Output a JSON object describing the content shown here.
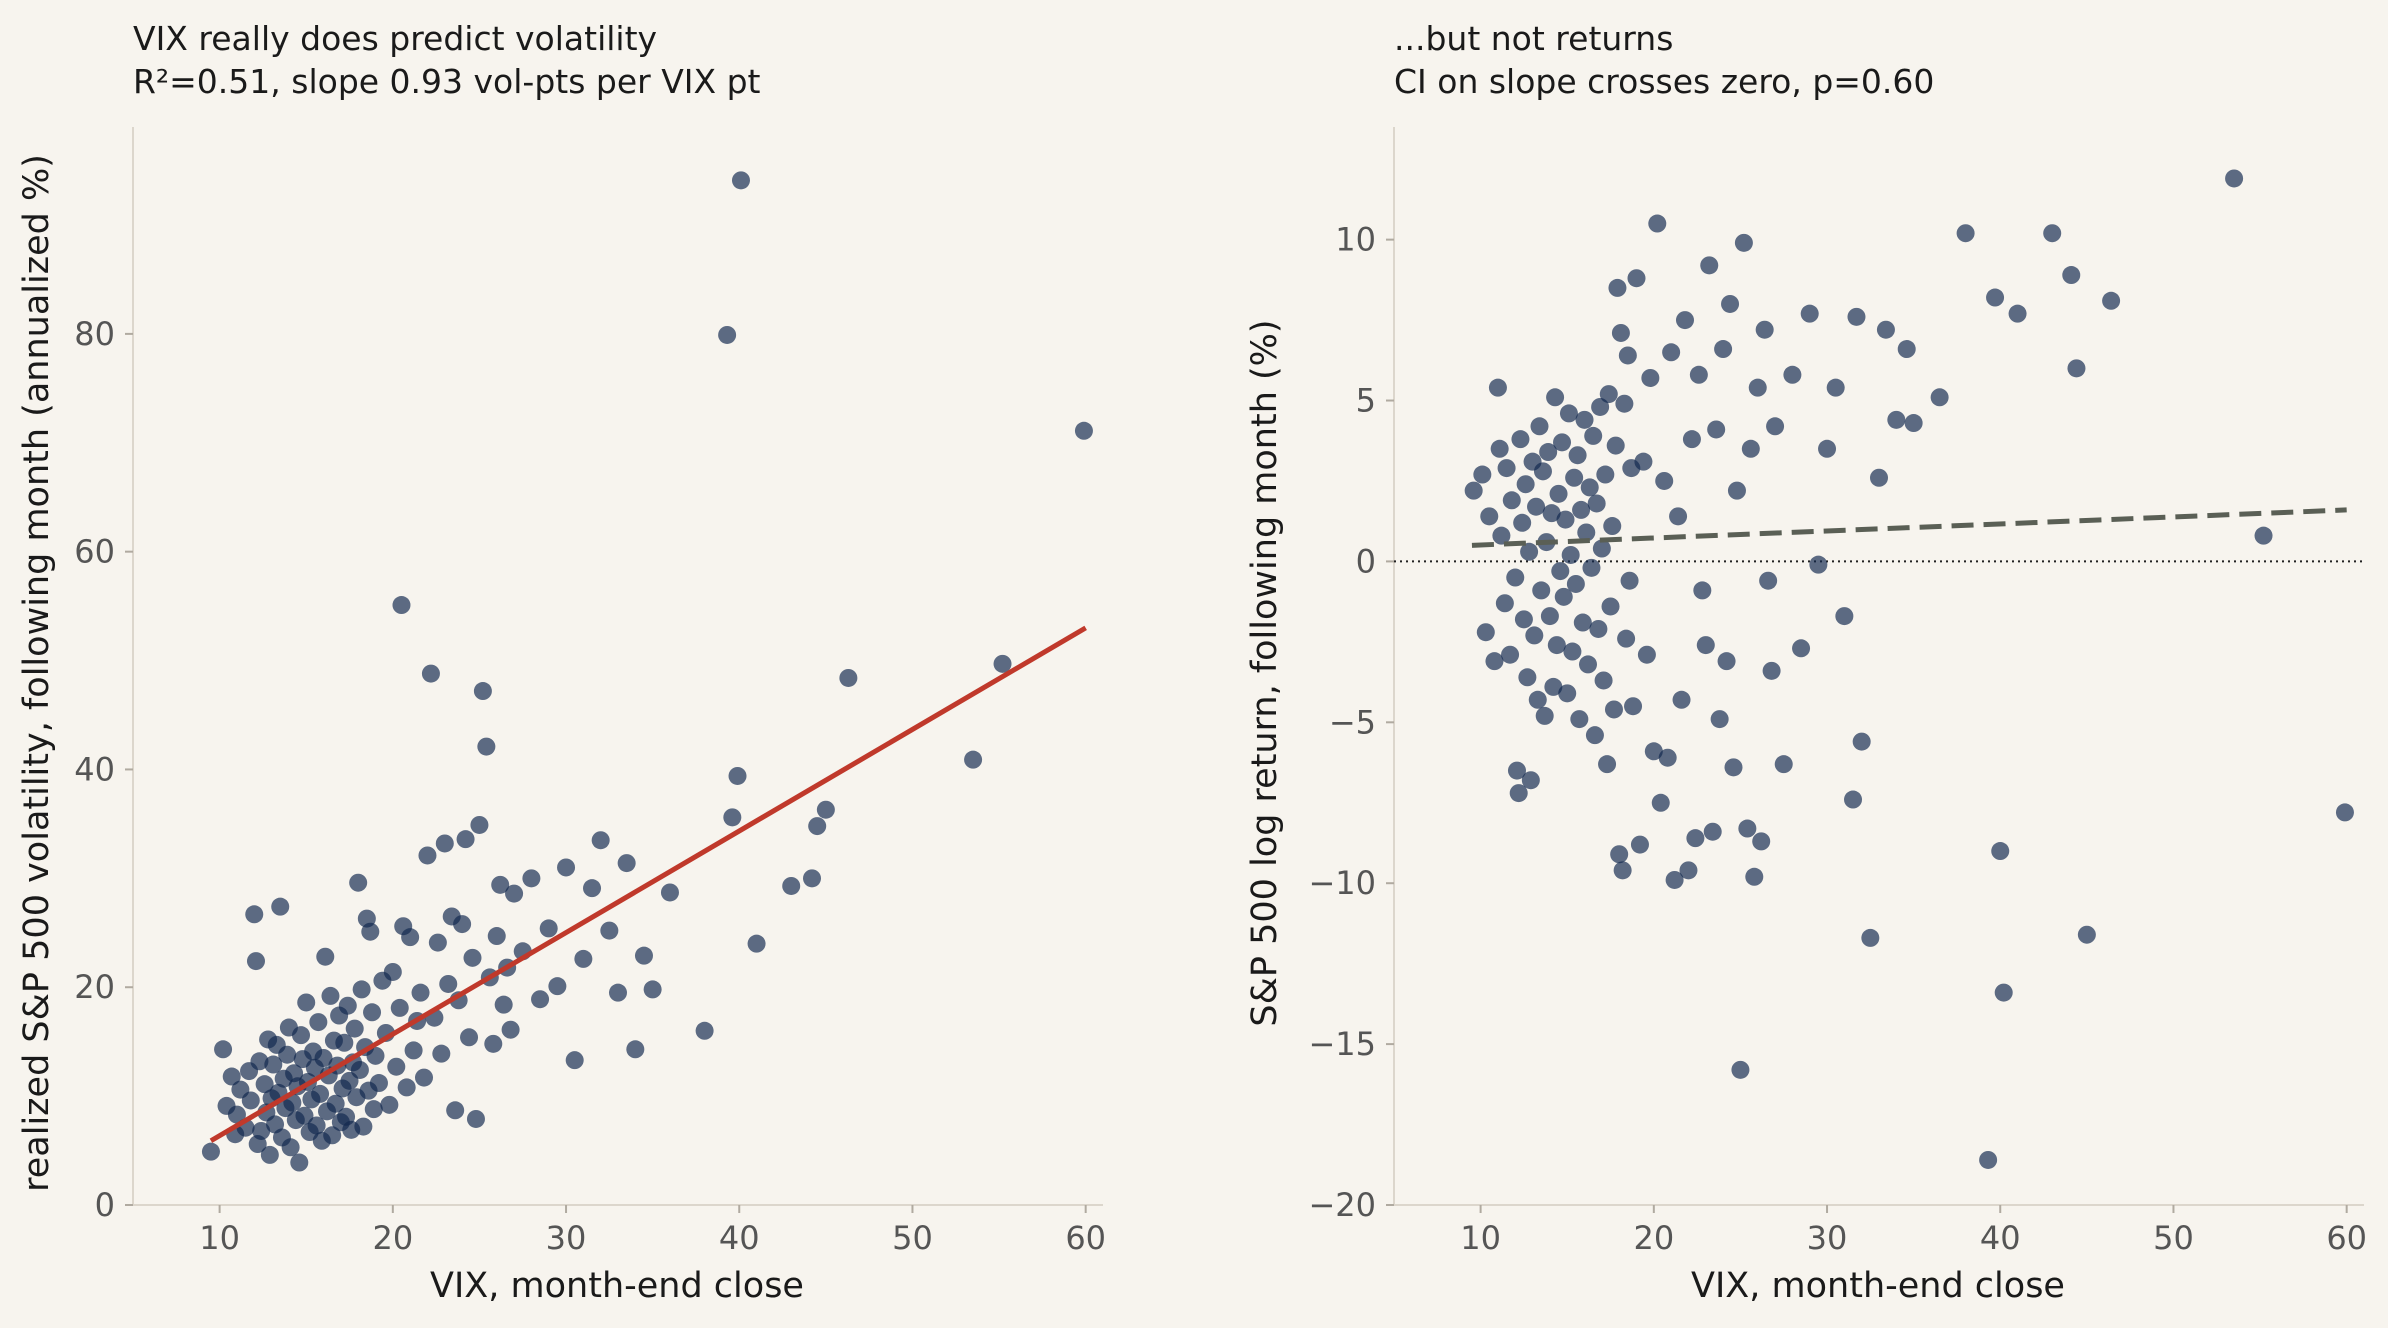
{
  "chart_data": [
    {
      "type": "scatter",
      "title": "VIX really does predict volatility",
      "subtitle": "R²=0.51, slope 0.93 vol-pts per VIX pt",
      "xlabel": "VIX, month-end close",
      "ylabel": "realized S&P 500 volatility, following month (annualized %)",
      "xlim": [
        5,
        61
      ],
      "ylim": [
        0,
        99
      ],
      "xticks": [
        "10",
        "20",
        "30",
        "40",
        "50",
        "60"
      ],
      "yticks": [
        "0",
        "20",
        "40",
        "60",
        "80"
      ],
      "grid": false,
      "point_color": "#12284e",
      "fit_line": {
        "x": [
          9.5,
          60
        ],
        "y": [
          5.9,
          53
        ],
        "color": "#c0392b",
        "style": "solid"
      },
      "zero_line": false,
      "points": [
        [
          9.5,
          4.9
        ],
        [
          10.2,
          14.3
        ],
        [
          10.4,
          9.1
        ],
        [
          10.7,
          11.8
        ],
        [
          10.9,
          6.5
        ],
        [
          11,
          8.3
        ],
        [
          11.2,
          10.6
        ],
        [
          11.5,
          7.1
        ],
        [
          11.7,
          12.3
        ],
        [
          11.8,
          9.6
        ],
        [
          12,
          26.7
        ],
        [
          12.1,
          22.4
        ],
        [
          12.2,
          5.6
        ],
        [
          12.3,
          13.2
        ],
        [
          12.4,
          6.8
        ],
        [
          12.6,
          11.1
        ],
        [
          12.7,
          8.5
        ],
        [
          12.8,
          15.2
        ],
        [
          12.9,
          4.6
        ],
        [
          13,
          9.8
        ],
        [
          13.1,
          12.9
        ],
        [
          13.2,
          7.4
        ],
        [
          13.3,
          14.7
        ],
        [
          13.4,
          10.3
        ],
        [
          13.5,
          27.4
        ],
        [
          13.6,
          6.2
        ],
        [
          13.7,
          11.6
        ],
        [
          13.8,
          8.9
        ],
        [
          13.9,
          13.8
        ],
        [
          14,
          16.3
        ],
        [
          14.1,
          5.3
        ],
        [
          14.2,
          9.4
        ],
        [
          14.3,
          12.1
        ],
        [
          14.4,
          7.8
        ],
        [
          14.5,
          10.9
        ],
        [
          14.6,
          3.9
        ],
        [
          14.7,
          15.6
        ],
        [
          14.8,
          13.4
        ],
        [
          14.9,
          8.2
        ],
        [
          15,
          18.6
        ],
        [
          15.1,
          11.3
        ],
        [
          15.2,
          6.7
        ],
        [
          15.3,
          9.7
        ],
        [
          15.4,
          14.1
        ],
        [
          15.5,
          12.6
        ],
        [
          15.6,
          7.3
        ],
        [
          15.7,
          16.8
        ],
        [
          15.8,
          10.2
        ],
        [
          15.9,
          5.9
        ],
        [
          16,
          13.5
        ],
        [
          16.1,
          22.8
        ],
        [
          16.2,
          8.6
        ],
        [
          16.3,
          11.9
        ],
        [
          16.4,
          19.2
        ],
        [
          16.5,
          6.4
        ],
        [
          16.6,
          15.1
        ],
        [
          16.7,
          9.3
        ],
        [
          16.8,
          12.8
        ],
        [
          16.9,
          17.4
        ],
        [
          17,
          7.6
        ],
        [
          17.1,
          10.7
        ],
        [
          17.2,
          14.9
        ],
        [
          17.3,
          8.1
        ],
        [
          17.4,
          18.3
        ],
        [
          17.5,
          11.4
        ],
        [
          17.6,
          6.9
        ],
        [
          17.7,
          13.1
        ],
        [
          17.8,
          16.2
        ],
        [
          17.9,
          9.9
        ],
        [
          18,
          29.6
        ],
        [
          18.1,
          12.4
        ],
        [
          18.2,
          19.8
        ],
        [
          18.3,
          7.2
        ],
        [
          18.4,
          14.5
        ],
        [
          18.5,
          26.3
        ],
        [
          18.6,
          10.5
        ],
        [
          18.7,
          25.1
        ],
        [
          18.8,
          17.7
        ],
        [
          18.9,
          8.8
        ],
        [
          19,
          13.7
        ],
        [
          19.2,
          11.2
        ],
        [
          19.4,
          20.6
        ],
        [
          19.6,
          15.8
        ],
        [
          19.8,
          9.2
        ],
        [
          20,
          21.4
        ],
        [
          20.2,
          12.7
        ],
        [
          20.4,
          18.1
        ],
        [
          20.5,
          55.1
        ],
        [
          20.6,
          25.6
        ],
        [
          20.8,
          10.8
        ],
        [
          21,
          24.6
        ],
        [
          21.2,
          14.2
        ],
        [
          21.4,
          16.9
        ],
        [
          21.6,
          19.5
        ],
        [
          21.8,
          11.7
        ],
        [
          22,
          32.1
        ],
        [
          22.2,
          48.8
        ],
        [
          22.4,
          17.2
        ],
        [
          22.6,
          24.1
        ],
        [
          22.8,
          13.9
        ],
        [
          23,
          33.2
        ],
        [
          23.2,
          20.3
        ],
        [
          23.4,
          26.5
        ],
        [
          23.6,
          8.7
        ],
        [
          23.8,
          18.8
        ],
        [
          24,
          25.8
        ],
        [
          24.2,
          33.6
        ],
        [
          24.4,
          15.4
        ],
        [
          24.6,
          22.7
        ],
        [
          24.8,
          7.9
        ],
        [
          25,
          34.9
        ],
        [
          25.2,
          47.2
        ],
        [
          25.4,
          42.1
        ],
        [
          25.6,
          20.9
        ],
        [
          25.8,
          14.8
        ],
        [
          26,
          24.7
        ],
        [
          26.2,
          29.4
        ],
        [
          26.4,
          18.4
        ],
        [
          26.6,
          21.8
        ],
        [
          26.8,
          16.1
        ],
        [
          27,
          28.6
        ],
        [
          27.5,
          23.3
        ],
        [
          28,
          30
        ],
        [
          28.5,
          18.9
        ],
        [
          29,
          25.4
        ],
        [
          29.5,
          20.1
        ],
        [
          30,
          31
        ],
        [
          30.5,
          13.3
        ],
        [
          31,
          22.6
        ],
        [
          31.5,
          29.1
        ],
        [
          32,
          33.5
        ],
        [
          32.5,
          25.2
        ],
        [
          33,
          19.5
        ],
        [
          33.5,
          31.4
        ],
        [
          34,
          14.3
        ],
        [
          34.5,
          22.9
        ],
        [
          35,
          19.8
        ],
        [
          36,
          28.7
        ],
        [
          38,
          16
        ],
        [
          39.3,
          79.9
        ],
        [
          39.6,
          35.6
        ],
        [
          39.9,
          39.4
        ],
        [
          40.1,
          94.1
        ],
        [
          41,
          24
        ],
        [
          43,
          29.3
        ],
        [
          44.2,
          30
        ],
        [
          44.5,
          34.8
        ],
        [
          45,
          36.3
        ],
        [
          46.3,
          48.4
        ],
        [
          53.5,
          40.9
        ],
        [
          55.2,
          49.7
        ],
        [
          59.9,
          71.1
        ]
      ]
    },
    {
      "type": "scatter",
      "title": "...but not returns",
      "subtitle": "CI on slope crosses zero, p=0.60",
      "xlabel": "VIX, month-end close",
      "ylabel": "S&P 500 log return, following month (%)",
      "xlim": [
        5,
        61
      ],
      "ylim": [
        -20,
        13.5
      ],
      "xticks": [
        "10",
        "20",
        "30",
        "40",
        "50",
        "60"
      ],
      "yticks": [
        "−20",
        "−15",
        "−10",
        "−5",
        "0",
        "5",
        "10"
      ],
      "grid": false,
      "point_color": "#12284e",
      "fit_line": {
        "x": [
          9.5,
          60
        ],
        "y": [
          0.5,
          1.6
        ],
        "color": "#5a5f55",
        "style": "dashed"
      },
      "zero_line": true,
      "points": [
        [
          9.6,
          2.2
        ],
        [
          10.1,
          2.7
        ],
        [
          10.3,
          -2.2
        ],
        [
          10.5,
          1.4
        ],
        [
          10.8,
          -3.1
        ],
        [
          11,
          5.4
        ],
        [
          11.1,
          3.5
        ],
        [
          11.2,
          0.8
        ],
        [
          11.4,
          -1.3
        ],
        [
          11.5,
          2.9
        ],
        [
          11.7,
          -2.9
        ],
        [
          11.8,
          1.9
        ],
        [
          12,
          -0.5
        ],
        [
          12.1,
          -6.5
        ],
        [
          12.2,
          -7.2
        ],
        [
          12.3,
          3.8
        ],
        [
          12.4,
          1.2
        ],
        [
          12.5,
          -1.8
        ],
        [
          12.6,
          2.4
        ],
        [
          12.7,
          -3.6
        ],
        [
          12.8,
          0.3
        ],
        [
          12.9,
          -6.8
        ],
        [
          13,
          3.1
        ],
        [
          13.1,
          -2.3
        ],
        [
          13.2,
          1.7
        ],
        [
          13.3,
          -4.3
        ],
        [
          13.4,
          4.2
        ],
        [
          13.5,
          -0.9
        ],
        [
          13.6,
          2.8
        ],
        [
          13.7,
          -4.8
        ],
        [
          13.8,
          0.6
        ],
        [
          13.9,
          3.4
        ],
        [
          14,
          -1.7
        ],
        [
          14.1,
          1.5
        ],
        [
          14.2,
          -3.9
        ],
        [
          14.3,
          5.1
        ],
        [
          14.4,
          -2.6
        ],
        [
          14.5,
          2.1
        ],
        [
          14.6,
          -0.3
        ],
        [
          14.7,
          3.7
        ],
        [
          14.8,
          -1.1
        ],
        [
          14.9,
          1.3
        ],
        [
          15,
          -4.1
        ],
        [
          15.1,
          4.6
        ],
        [
          15.2,
          0.2
        ],
        [
          15.3,
          -2.8
        ],
        [
          15.4,
          2.6
        ],
        [
          15.5,
          -0.7
        ],
        [
          15.6,
          3.3
        ],
        [
          15.7,
          -4.9
        ],
        [
          15.8,
          1.6
        ],
        [
          15.9,
          -1.9
        ],
        [
          16,
          4.4
        ],
        [
          16.1,
          0.9
        ],
        [
          16.2,
          -3.2
        ],
        [
          16.3,
          2.3
        ],
        [
          16.4,
          -0.2
        ],
        [
          16.5,
          3.9
        ],
        [
          16.6,
          -5.4
        ],
        [
          16.7,
          1.8
        ],
        [
          16.8,
          -2.1
        ],
        [
          16.9,
          4.8
        ],
        [
          17,
          0.4
        ],
        [
          17.1,
          -3.7
        ],
        [
          17.2,
          2.7
        ],
        [
          17.3,
          -6.3
        ],
        [
          17.4,
          5.2
        ],
        [
          17.5,
          -1.4
        ],
        [
          17.6,
          1.1
        ],
        [
          17.7,
          -4.6
        ],
        [
          17.8,
          3.6
        ],
        [
          17.9,
          8.5
        ],
        [
          18,
          -9.1
        ],
        [
          18.1,
          7.1
        ],
        [
          18.2,
          -9.6
        ],
        [
          18.3,
          4.9
        ],
        [
          18.4,
          -2.4
        ],
        [
          18.5,
          6.4
        ],
        [
          18.6,
          -0.6
        ],
        [
          18.7,
          2.9
        ],
        [
          18.8,
          -4.5
        ],
        [
          19,
          8.8
        ],
        [
          19.2,
          -8.8
        ],
        [
          19.4,
          3.1
        ],
        [
          19.6,
          -2.9
        ],
        [
          19.8,
          5.7
        ],
        [
          20,
          -5.9
        ],
        [
          20.2,
          10.5
        ],
        [
          20.4,
          -7.5
        ],
        [
          20.6,
          2.5
        ],
        [
          20.8,
          -6.1
        ],
        [
          21,
          6.5
        ],
        [
          21.2,
          -9.9
        ],
        [
          21.4,
          1.4
        ],
        [
          21.6,
          -4.3
        ],
        [
          21.8,
          7.5
        ],
        [
          22,
          -9.6
        ],
        [
          22.2,
          3.8
        ],
        [
          22.4,
          -8.6
        ],
        [
          22.6,
          5.8
        ],
        [
          22.8,
          -0.9
        ],
        [
          23,
          -2.6
        ],
        [
          23.2,
          9.2
        ],
        [
          23.4,
          -8.4
        ],
        [
          23.6,
          4.1
        ],
        [
          23.8,
          -4.9
        ],
        [
          24,
          6.6
        ],
        [
          24.2,
          -3.1
        ],
        [
          24.4,
          8
        ],
        [
          24.6,
          -6.4
        ],
        [
          24.8,
          2.2
        ],
        [
          25,
          -15.8
        ],
        [
          25.2,
          9.9
        ],
        [
          25.4,
          -8.3
        ],
        [
          25.6,
          3.5
        ],
        [
          25.8,
          -9.8
        ],
        [
          26,
          5.4
        ],
        [
          26.2,
          -8.7
        ],
        [
          26.4,
          7.2
        ],
        [
          26.6,
          -0.6
        ],
        [
          26.8,
          -3.4
        ],
        [
          27,
          4.2
        ],
        [
          27.5,
          -6.3
        ],
        [
          28,
          5.8
        ],
        [
          28.5,
          -2.7
        ],
        [
          29,
          7.7
        ],
        [
          29.5,
          -0.1
        ],
        [
          30,
          3.5
        ],
        [
          30.5,
          5.4
        ],
        [
          31,
          -1.7
        ],
        [
          31.5,
          -7.4
        ],
        [
          31.7,
          7.6
        ],
        [
          32,
          -5.6
        ],
        [
          32.5,
          -11.7
        ],
        [
          33,
          2.6
        ],
        [
          33.4,
          7.2
        ],
        [
          34,
          4.4
        ],
        [
          34.6,
          6.6
        ],
        [
          35,
          4.3
        ],
        [
          36.5,
          5.1
        ],
        [
          38,
          10.2
        ],
        [
          39.3,
          -18.6
        ],
        [
          39.7,
          8.2
        ],
        [
          40,
          -9
        ],
        [
          40.2,
          -13.4
        ],
        [
          41,
          7.7
        ],
        [
          43,
          10.2
        ],
        [
          44.1,
          8.9
        ],
        [
          44.4,
          6
        ],
        [
          45,
          -11.6
        ],
        [
          46.4,
          8.1
        ],
        [
          53.5,
          11.9
        ],
        [
          55.2,
          0.8
        ],
        [
          59.9,
          -7.8
        ]
      ]
    }
  ]
}
